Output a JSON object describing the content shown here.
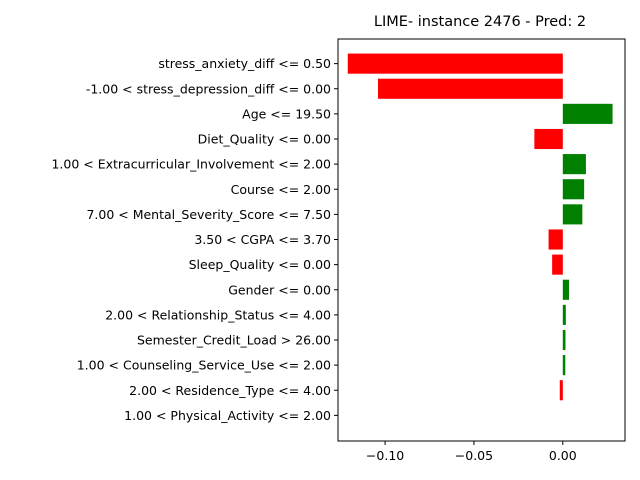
{
  "chart_data": {
    "type": "bar",
    "orientation": "horizontal",
    "title": "LIME- instance 2476 - Pred: 2",
    "xlabel": "",
    "ylabel": "",
    "xlim": [
      -0.1265,
      0.035
    ],
    "xticks": [
      -0.1,
      -0.05,
      0.0
    ],
    "xtick_labels": [
      "−0.10",
      "−0.05",
      "0.00"
    ],
    "grid": false,
    "colors": {
      "positive": "#008000",
      "negative": "#ff0000"
    },
    "categories": [
      "stress_anxiety_diff <= 0.50",
      "-1.00 < stress_depression_diff <= 0.00",
      "Age <= 19.50",
      "Diet_Quality <= 0.00",
      "1.00 < Extracurricular_Involvement <= 2.00",
      "Course <= 2.00",
      "7.00 < Mental_Severity_Score <= 7.50",
      "3.50 < CGPA <= 3.70",
      "Sleep_Quality <= 0.00",
      "Gender <= 0.00",
      "2.00 < Relationship_Status <= 4.00",
      "Semester_Credit_Load > 26.00",
      "1.00 < Counseling_Service_Use <= 2.00",
      "2.00 < Residence_Type <= 4.00",
      "1.00 < Physical_Activity <= 2.00"
    ],
    "values": [
      -0.121,
      -0.104,
      0.028,
      -0.016,
      0.013,
      0.012,
      0.011,
      -0.008,
      -0.006,
      0.0035,
      0.0017,
      0.0015,
      0.0014,
      -0.0017,
      0.0
    ]
  }
}
